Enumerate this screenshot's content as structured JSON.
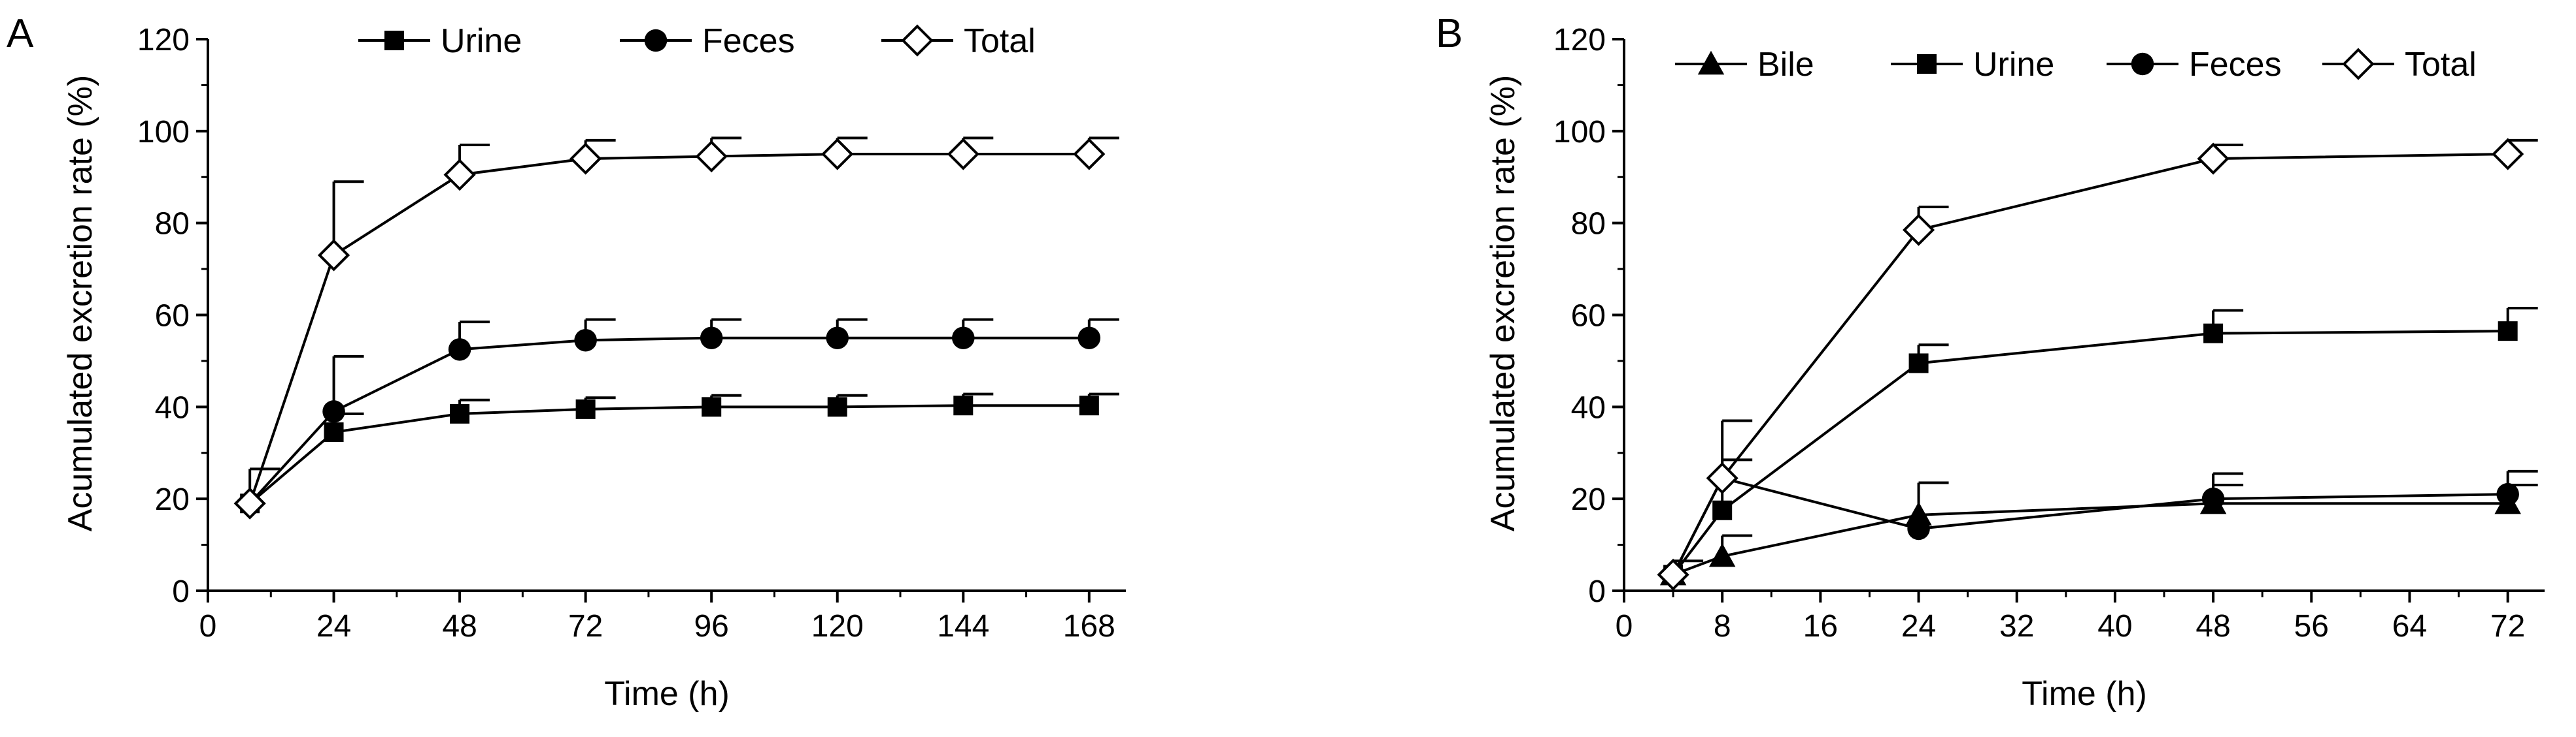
{
  "chart_data": [
    {
      "panel_label": "A",
      "type": "line",
      "title": "",
      "xlabel": "Time (h)",
      "ylabel": "Acumulated excretion rate (%)",
      "xlim": [
        0,
        175
      ],
      "ylim": [
        0,
        120
      ],
      "xticks": [
        0,
        24,
        48,
        72,
        96,
        120,
        144,
        168
      ],
      "yticks": [
        0,
        20,
        40,
        60,
        80,
        100,
        120
      ],
      "legend_position": "top",
      "series": [
        {
          "name": "Urine",
          "marker": "filled-square",
          "x": [
            8,
            24,
            48,
            72,
            96,
            120,
            144,
            168
          ],
          "values": [
            19,
            34.5,
            38.5,
            39.5,
            40,
            40,
            40.3,
            40.3
          ],
          "error_plus": [
            0,
            4,
            3,
            2.5,
            2.5,
            2.5,
            2.5,
            2.5
          ]
        },
        {
          "name": "Feces",
          "marker": "filled-circle",
          "x": [
            8,
            24,
            48,
            72,
            96,
            120,
            144,
            168
          ],
          "values": [
            19,
            39,
            52.5,
            54.5,
            55,
            55,
            55,
            55
          ],
          "error_plus": [
            0,
            12,
            6,
            4.5,
            4,
            4,
            4,
            4
          ]
        },
        {
          "name": "Total",
          "marker": "open-diamond",
          "x": [
            8,
            24,
            48,
            72,
            96,
            120,
            144,
            168
          ],
          "values": [
            19,
            73,
            90.5,
            94,
            94.5,
            95,
            95,
            95
          ],
          "error_plus": [
            7.5,
            16,
            6.5,
            4,
            4,
            3.5,
            3.5,
            3.5
          ]
        }
      ]
    },
    {
      "panel_label": "B",
      "type": "line",
      "title": "",
      "xlabel": "Time (h)",
      "ylabel": "Acumulated excretion rate (%)",
      "xlim": [
        0,
        75
      ],
      "ylim": [
        0,
        120
      ],
      "xticks": [
        0,
        8,
        16,
        24,
        32,
        40,
        48,
        56,
        64,
        72
      ],
      "yticks": [
        0,
        20,
        40,
        60,
        80,
        100,
        120
      ],
      "legend_position": "top",
      "series": [
        {
          "name": "Bile",
          "marker": "filled-triangle",
          "x": [
            4,
            8,
            24,
            48,
            72
          ],
          "values": [
            3.5,
            7.5,
            16.5,
            19,
            19
          ],
          "error_plus": [
            3,
            4.5,
            7,
            4,
            4
          ]
        },
        {
          "name": "Urine",
          "marker": "filled-square",
          "x": [
            4,
            8,
            24,
            48,
            72
          ],
          "values": [
            3.5,
            17.5,
            49.5,
            56,
            56.5
          ],
          "error_plus": [
            0,
            11,
            4,
            5,
            5
          ]
        },
        {
          "name": "Feces",
          "marker": "filled-circle",
          "x": [
            4,
            8,
            24,
            48,
            72
          ],
          "values": [
            3.5,
            24.5,
            13.5,
            20,
            21
          ],
          "error_plus": [
            0,
            0,
            0,
            5.5,
            5
          ]
        },
        {
          "name": "Total",
          "marker": "open-diamond",
          "x": [
            4,
            8,
            24,
            48,
            72
          ],
          "values": [
            3.5,
            24.5,
            78.5,
            94,
            95
          ],
          "error_plus": [
            0,
            12.5,
            5,
            3,
            3
          ]
        }
      ]
    }
  ]
}
